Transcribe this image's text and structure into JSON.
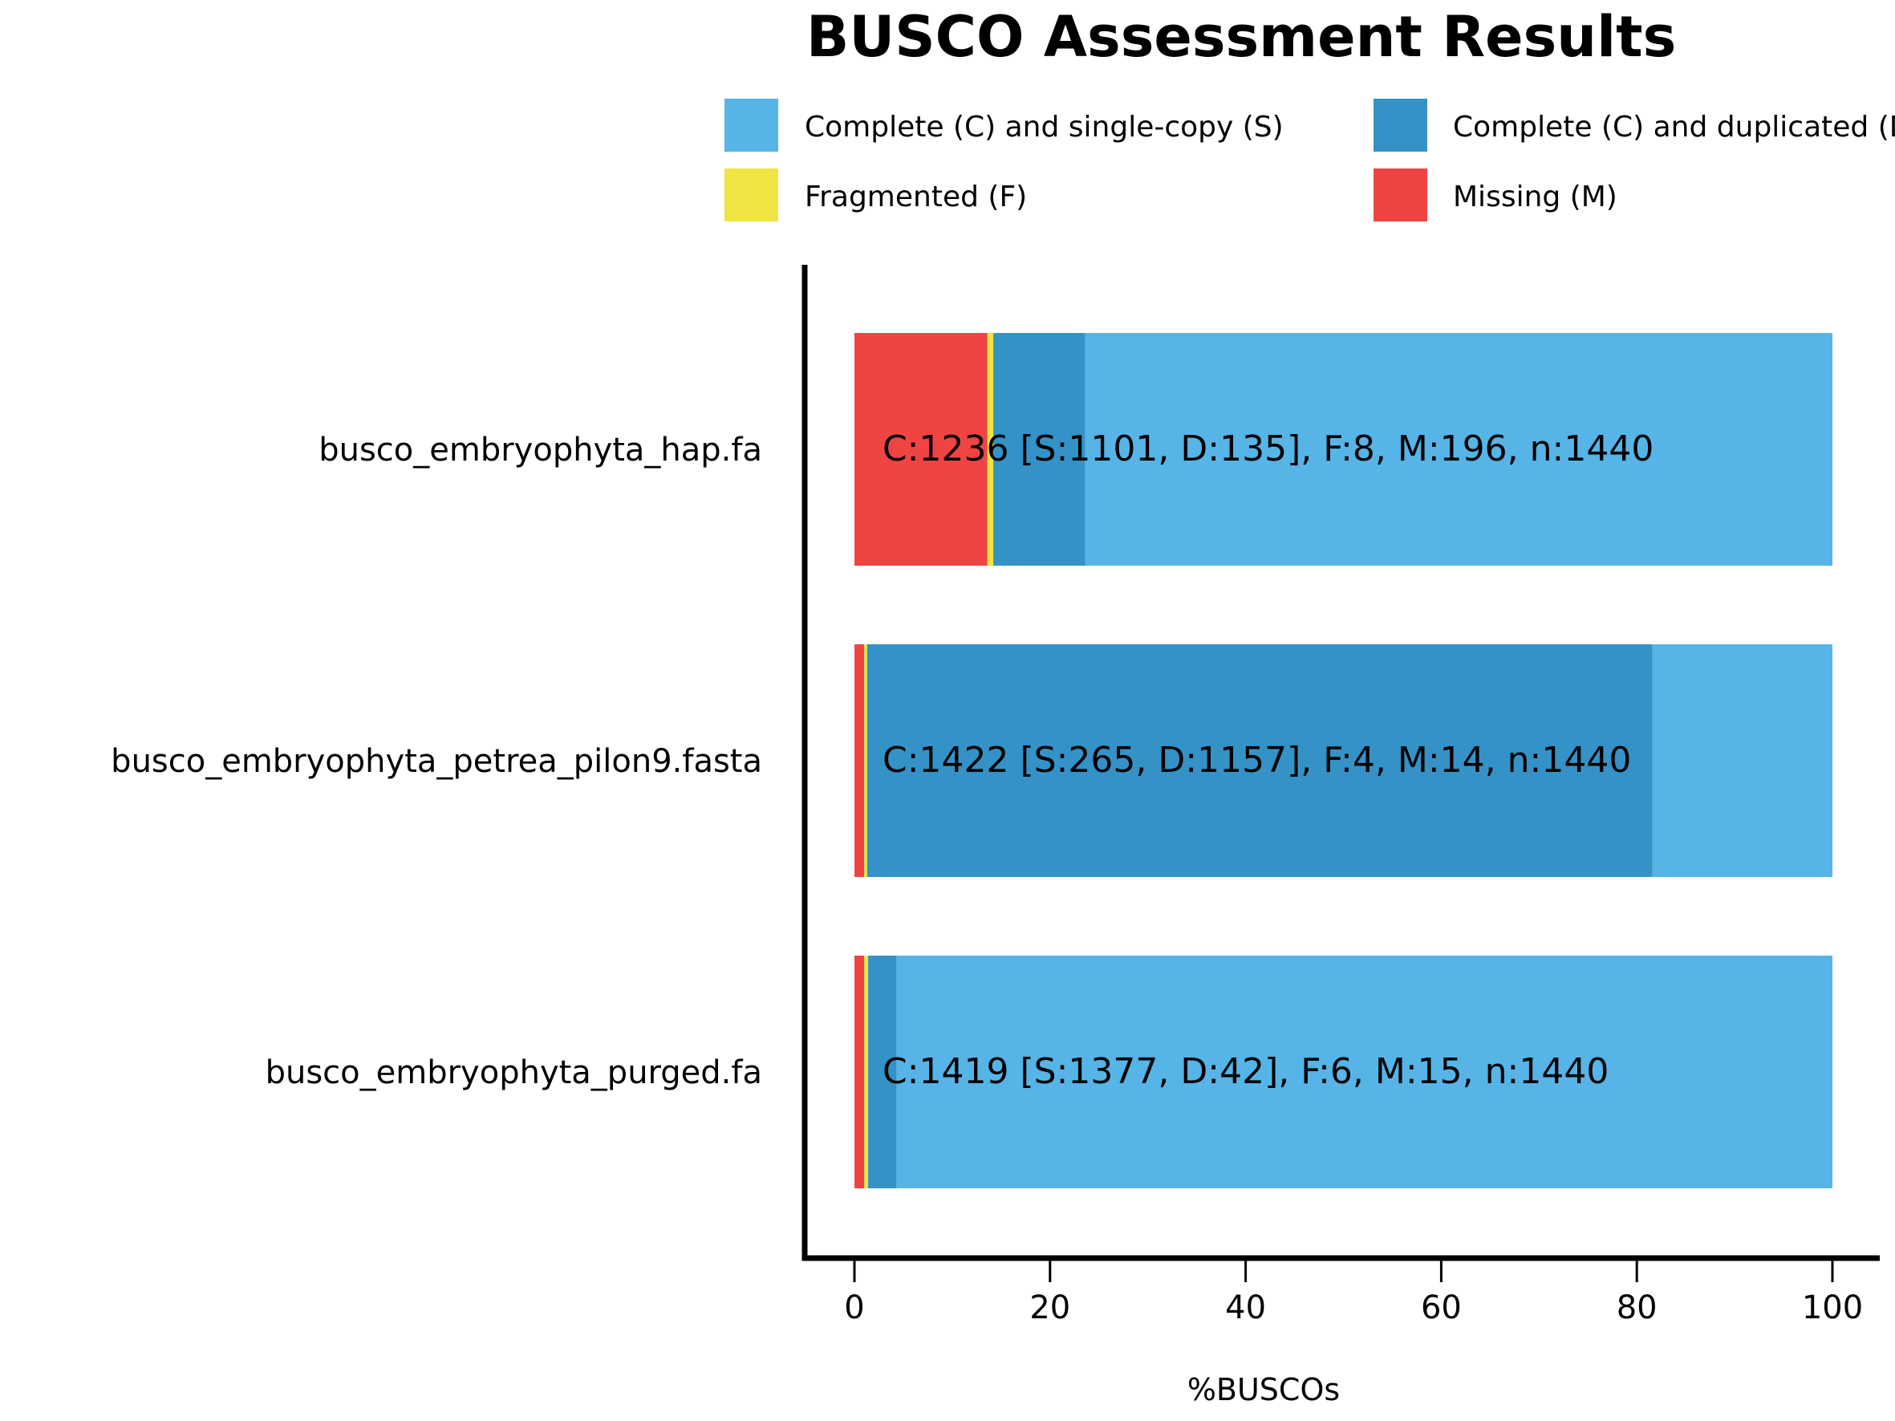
{
  "chart_data": {
    "type": "bar",
    "orientation": "horizontal",
    "stacked": true,
    "title": "BUSCO Assessment Results",
    "xlabel": "%BUSCOs",
    "ylabel": "",
    "xlim": [
      -5,
      104
    ],
    "xticks": [
      0,
      20,
      40,
      60,
      80,
      100
    ],
    "grid": false,
    "legend_position": "top",
    "categories": [
      "busco_embryophyta_hap.fa",
      "busco_embryophyta_petrea_pilon9.fasta",
      "busco_embryophyta_purged.fa"
    ],
    "series": [
      {
        "name": "Missing (M)",
        "color": "#F04442",
        "values": [
          13.6,
          1.0,
          1.0
        ]
      },
      {
        "name": "Fragmented (F)",
        "color": "#F0E442",
        "values": [
          0.6,
          0.3,
          0.4
        ]
      },
      {
        "name": "Complete (C) and duplicated (D)",
        "color": "#3492C7",
        "values": [
          9.4,
          80.3,
          2.9
        ]
      },
      {
        "name": "Complete (C) and single-copy (S)",
        "color": "#56B4E7",
        "values": [
          76.4,
          18.4,
          95.7
        ]
      }
    ],
    "legend": [
      {
        "label": "Complete (C) and single-copy (S)",
        "color": "#56B4E7"
      },
      {
        "label": "Complete (C) and duplicated (D)",
        "color": "#3492C7"
      },
      {
        "label": "Fragmented (F)",
        "color": "#F0E442"
      },
      {
        "label": "Missing (M)",
        "color": "#F04442"
      }
    ],
    "annotations": [
      "C:1236 [S:1101, D:135], F:8, M:196, n:1440",
      "C:1422 [S:265, D:1157], F:4, M:14, n:1440",
      "C:1419 [S:1377, D:42], F:6, M:15, n:1440"
    ]
  }
}
